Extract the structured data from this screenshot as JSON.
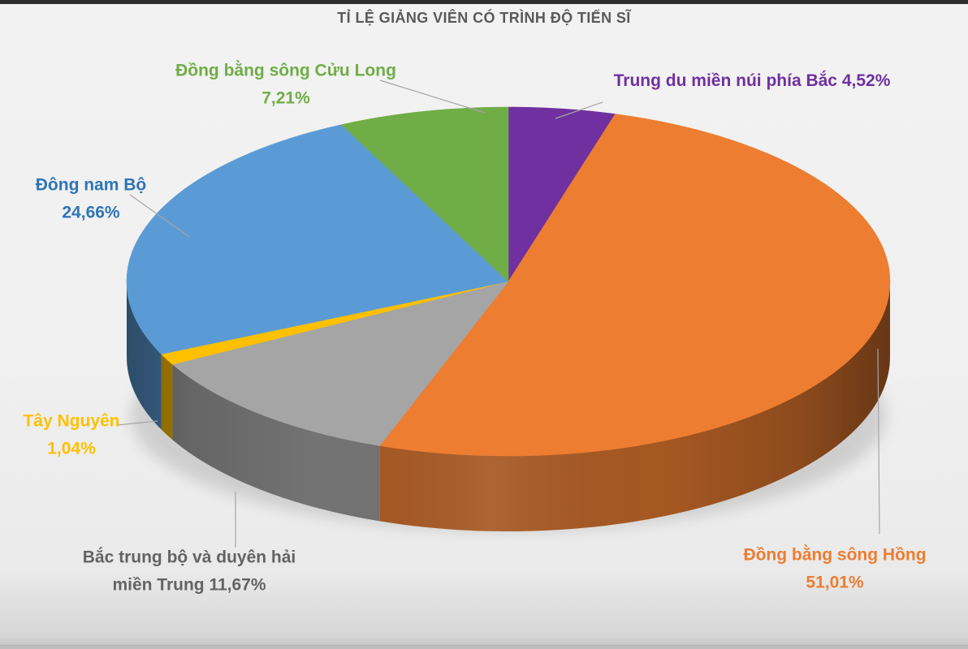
{
  "page": {
    "background_color": "#efefef",
    "top_bar_color": "#2e2e2e",
    "bottom_bar_color": "#bdbdbd"
  },
  "chart_data": {
    "type": "pie",
    "style": "3d",
    "title": "TỈ LỆ GIẢNG VIÊN CÓ TRÌNH ĐỘ TIẾN SĨ",
    "title_color": "#595959",
    "unit": "%",
    "decimal_separator": ",",
    "start_angle_deg": 0,
    "direction": "clockwise",
    "legend_position": "none",
    "labels_style": "callout-with-leader-lines",
    "leader_line_color": "#a6a6a6",
    "slices": [
      {
        "label": "Trung du miền núi phía Bắc",
        "value": 4.52,
        "value_text": "4,52%",
        "color": "#7030A0",
        "label_color": "#7030A0",
        "label_lines": [
          "Trung du miền núi phía Bắc 4,52%"
        ]
      },
      {
        "label": "Đồng bằng sông Hồng",
        "value": 51.01,
        "value_text": "51,01%",
        "color": "#ED7D31",
        "label_color": "#ED7D31",
        "label_lines": [
          "Đồng bằng sông Hồng",
          "51,01%"
        ]
      },
      {
        "label": "Bắc trung bộ và duyên hải miền Trung",
        "value": 11.67,
        "value_text": "11,67%",
        "color": "#A5A5A5",
        "label_color": "#636363",
        "label_lines": [
          "Bắc trung bộ và duyên hải",
          "miền Trung 11,67%"
        ]
      },
      {
        "label": "Tây Nguyên",
        "value": 1.04,
        "value_text": "1,04%",
        "color": "#FFC000",
        "label_color": "#FFC000",
        "label_lines": [
          "Tây Nguyên",
          "1,04%"
        ]
      },
      {
        "label": "Đông nam Bộ",
        "value": 24.66,
        "value_text": "24,66%",
        "color": "#5B9BD5",
        "label_color": "#2E75B6",
        "label_lines": [
          "Đông nam Bộ",
          "24,66%"
        ]
      },
      {
        "label": "Đồng bằng sông Cửu Long",
        "value": 7.21,
        "value_text": "7,21%",
        "color": "#70AD47",
        "label_color": "#70AD47",
        "label_lines": [
          "Đồng bằng sông Cửu Long",
          "7,21%"
        ]
      }
    ]
  }
}
